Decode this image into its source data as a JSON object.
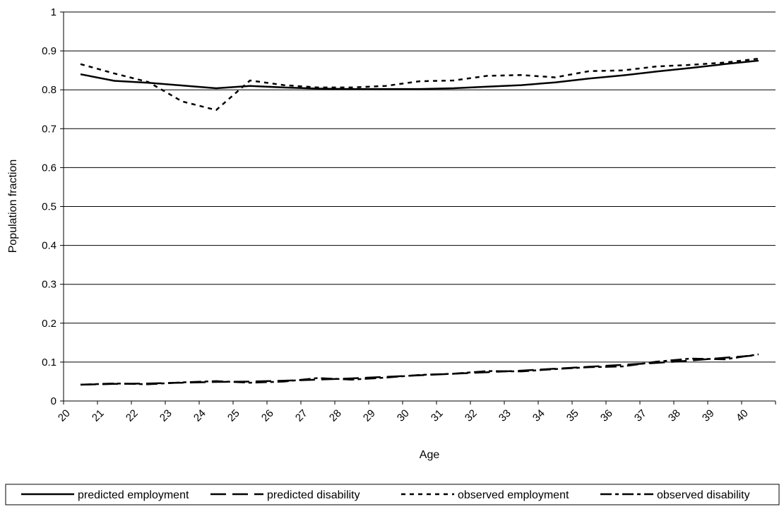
{
  "chart_data": {
    "type": "line",
    "xlabel": "Age",
    "ylabel": "Population fraction",
    "categories": [
      "20",
      "21",
      "22",
      "23",
      "24",
      "25",
      "26",
      "27",
      "28",
      "29",
      "30",
      "31",
      "32",
      "33",
      "34",
      "35",
      "36",
      "37",
      "38",
      "39",
      "40"
    ],
    "ylim": [
      0,
      1
    ],
    "yticks": [
      "0",
      "0.1",
      "0.2",
      "0.3",
      "0.4",
      "0.5",
      "0.6",
      "0.7",
      "0.8",
      "0.9",
      "1"
    ],
    "grid": "horizontal",
    "legend_position": "bottom",
    "series": [
      {
        "name": "predicted employment",
        "style": "solid",
        "color": "#000000",
        "values": [
          0.84,
          0.823,
          0.818,
          0.811,
          0.804,
          0.81,
          0.806,
          0.803,
          0.802,
          0.802,
          0.802,
          0.804,
          0.808,
          0.812,
          0.819,
          0.829,
          0.837,
          0.847,
          0.856,
          0.866,
          0.875
        ]
      },
      {
        "name": "predicted disability",
        "style": "long-dash",
        "color": "#000000",
        "values": [
          0.042,
          0.044,
          0.045,
          0.047,
          0.049,
          0.05,
          0.052,
          0.055,
          0.058,
          0.062,
          0.066,
          0.07,
          0.074,
          0.078,
          0.083,
          0.088,
          0.093,
          0.098,
          0.104,
          0.111,
          0.118
        ]
      },
      {
        "name": "observed employment",
        "style": "short-dash",
        "color": "#000000",
        "values": [
          0.866,
          0.842,
          0.82,
          0.77,
          0.748,
          0.824,
          0.812,
          0.806,
          0.806,
          0.81,
          0.822,
          0.824,
          0.836,
          0.838,
          0.832,
          0.848,
          0.85,
          0.86,
          0.864,
          0.87,
          0.88
        ]
      },
      {
        "name": "observed disability",
        "style": "dash-dot",
        "color": "#000000",
        "values": [
          0.042,
          0.045,
          0.043,
          0.048,
          0.051,
          0.047,
          0.05,
          0.059,
          0.055,
          0.06,
          0.067,
          0.07,
          0.077,
          0.076,
          0.082,
          0.087,
          0.089,
          0.101,
          0.109,
          0.107,
          0.12
        ]
      }
    ]
  }
}
